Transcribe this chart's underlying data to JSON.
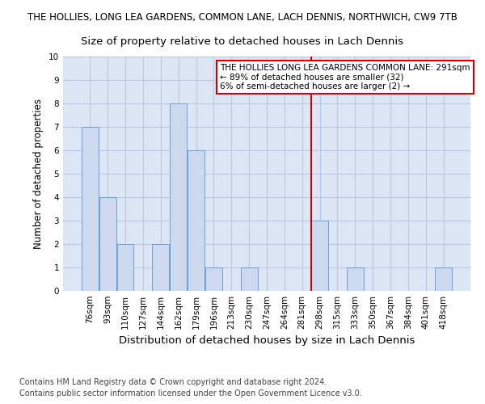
{
  "title": "THE HOLLIES, LONG LEA GARDENS, COMMON LANE, LACH DENNIS, NORTHWICH, CW9 7TB",
  "subtitle": "Size of property relative to detached houses in Lach Dennis",
  "xlabel": "Distribution of detached houses by size in Lach Dennis",
  "ylabel": "Number of detached properties",
  "categories": [
    "76sqm",
    "93sqm",
    "110sqm",
    "127sqm",
    "144sqm",
    "162sqm",
    "179sqm",
    "196sqm",
    "213sqm",
    "230sqm",
    "247sqm",
    "264sqm",
    "281sqm",
    "298sqm",
    "315sqm",
    "333sqm",
    "350sqm",
    "367sqm",
    "384sqm",
    "401sqm",
    "418sqm"
  ],
  "values": [
    7,
    4,
    2,
    0,
    2,
    8,
    6,
    1,
    0,
    1,
    0,
    0,
    0,
    3,
    0,
    1,
    0,
    0,
    0,
    0,
    1
  ],
  "bar_color": "#ccd9ee",
  "bar_edge_color": "#6b9fd4",
  "grid_color": "#b8c8e0",
  "bg_color": "#dce6f5",
  "vline_x": 12.5,
  "vline_color": "#cc0000",
  "annotation_line1": "THE HOLLIES LONG LEA GARDENS COMMON LANE: 291sqm",
  "annotation_line2": "← 89% of detached houses are smaller (32)",
  "annotation_line3": "6% of semi-detached houses are larger (2) →",
  "annotation_box_color": "#cc0000",
  "footnote1": "Contains HM Land Registry data © Crown copyright and database right 2024.",
  "footnote2": "Contains public sector information licensed under the Open Government Licence v3.0.",
  "ylim": [
    0,
    10
  ],
  "yticks": [
    0,
    1,
    2,
    3,
    4,
    5,
    6,
    7,
    8,
    9,
    10
  ],
  "title_fontsize": 8.5,
  "subtitle_fontsize": 9.5,
  "ylabel_fontsize": 8.5,
  "xlabel_fontsize": 9.5,
  "tick_fontsize": 7.5,
  "footnote_fontsize": 7.0
}
